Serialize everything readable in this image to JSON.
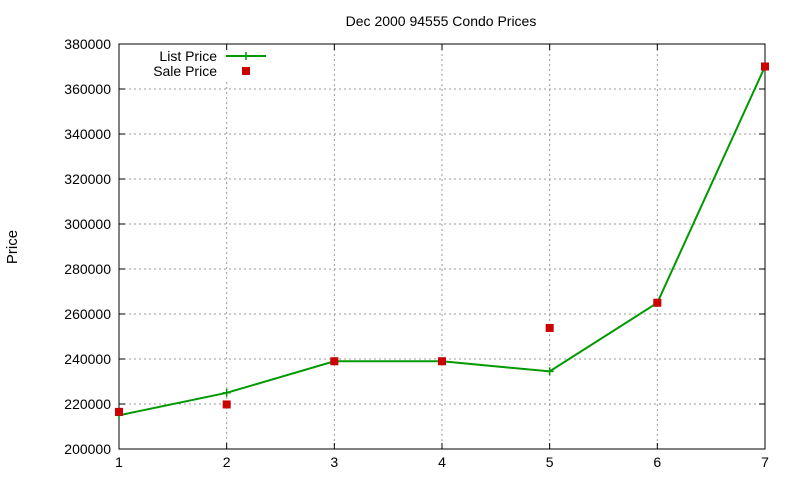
{
  "chart_data": {
    "type": "line",
    "title": "Dec 2000 94555 Condo Prices",
    "xlabel": "",
    "ylabel": "Price",
    "x": [
      1,
      2,
      3,
      4,
      5,
      6,
      7
    ],
    "xlim": [
      1,
      7
    ],
    "ylim": [
      200000,
      380000
    ],
    "y_ticks": [
      200000,
      220000,
      240000,
      260000,
      280000,
      300000,
      320000,
      340000,
      360000,
      380000
    ],
    "x_ticks": [
      1,
      2,
      3,
      4,
      5,
      6,
      7
    ],
    "grid": true,
    "legend_position": "top-left",
    "series": [
      {
        "name": "List Price",
        "style": "line-with-plus-markers",
        "color": "#009900",
        "values": [
          215000,
          225000,
          239000,
          239000,
          234500,
          265000,
          370000
        ]
      },
      {
        "name": "Sale Price",
        "style": "square-points",
        "color": "#cc0000",
        "values": [
          216500,
          219800,
          239000,
          239000,
          253800,
          265000,
          370000
        ]
      }
    ]
  }
}
